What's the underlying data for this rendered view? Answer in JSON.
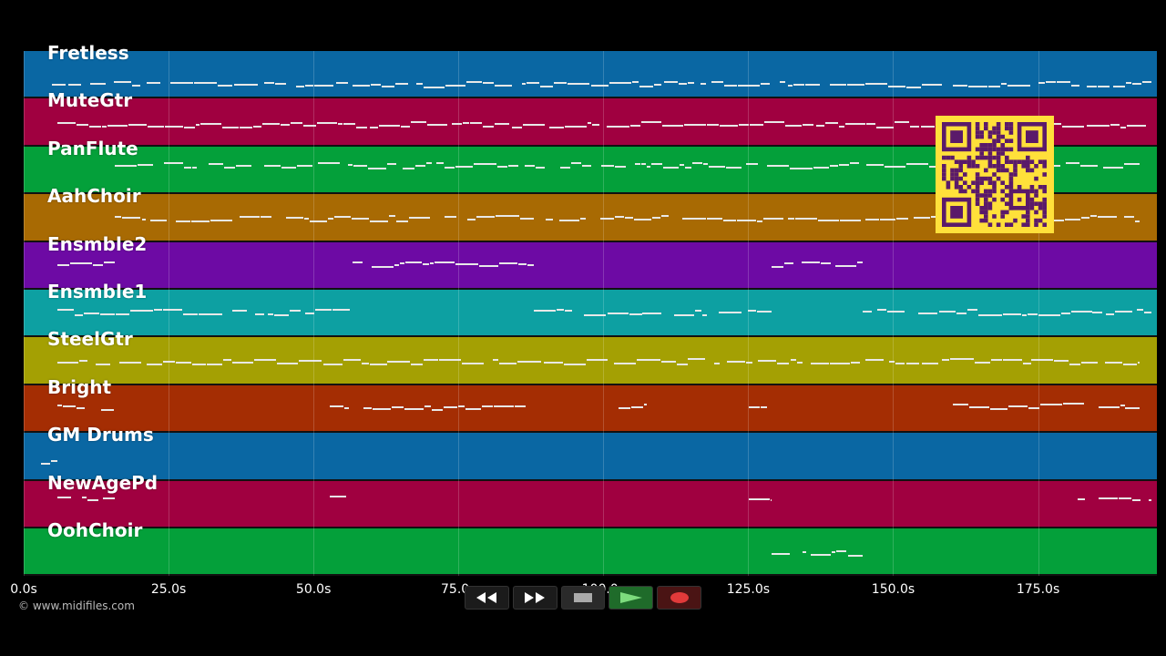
{
  "tracks": [
    {
      "name": "Fretless",
      "color": "#0a67a3"
    },
    {
      "name": "MuteGtr",
      "color": "#a00040"
    },
    {
      "name": "PanFlute",
      "color": "#04a03a"
    },
    {
      "name": "AahChoir",
      "color": "#a86a03"
    },
    {
      "name": "Ensmble2",
      "color": "#6d0aa4"
    },
    {
      "name": "Ensmble1",
      "color": "#0da0a2"
    },
    {
      "name": "SteelGtr",
      "color": "#a4a003"
    },
    {
      "name": "Bright",
      "color": "#a42d03"
    },
    {
      "name": "GM Drums",
      "color": "#0a67a3"
    },
    {
      "name": "NewAgePd",
      "color": "#a00040"
    },
    {
      "name": "OohChoir",
      "color": "#04a03a"
    }
  ],
  "time_axis": {
    "ticks": [
      "0.0s",
      "25.0s",
      "50.0s",
      "75.0s",
      "100.0s",
      "125.0s",
      "150.0s",
      "175.0s"
    ]
  },
  "copyright": "© www.midifiles.com",
  "transport": {
    "buttons": [
      {
        "name": "rewind-button",
        "icon": "rewind-icon"
      },
      {
        "name": "fast-forward-button",
        "icon": "fast-forward-icon"
      },
      {
        "name": "stop-button",
        "icon": "stop-icon"
      },
      {
        "name": "play-button",
        "icon": "play-icon"
      },
      {
        "name": "record-button",
        "icon": "record-icon"
      }
    ]
  },
  "qr_code": {
    "icon": "qr-code-icon",
    "color": "#ffe03a",
    "dark": "#5a1a6a"
  }
}
